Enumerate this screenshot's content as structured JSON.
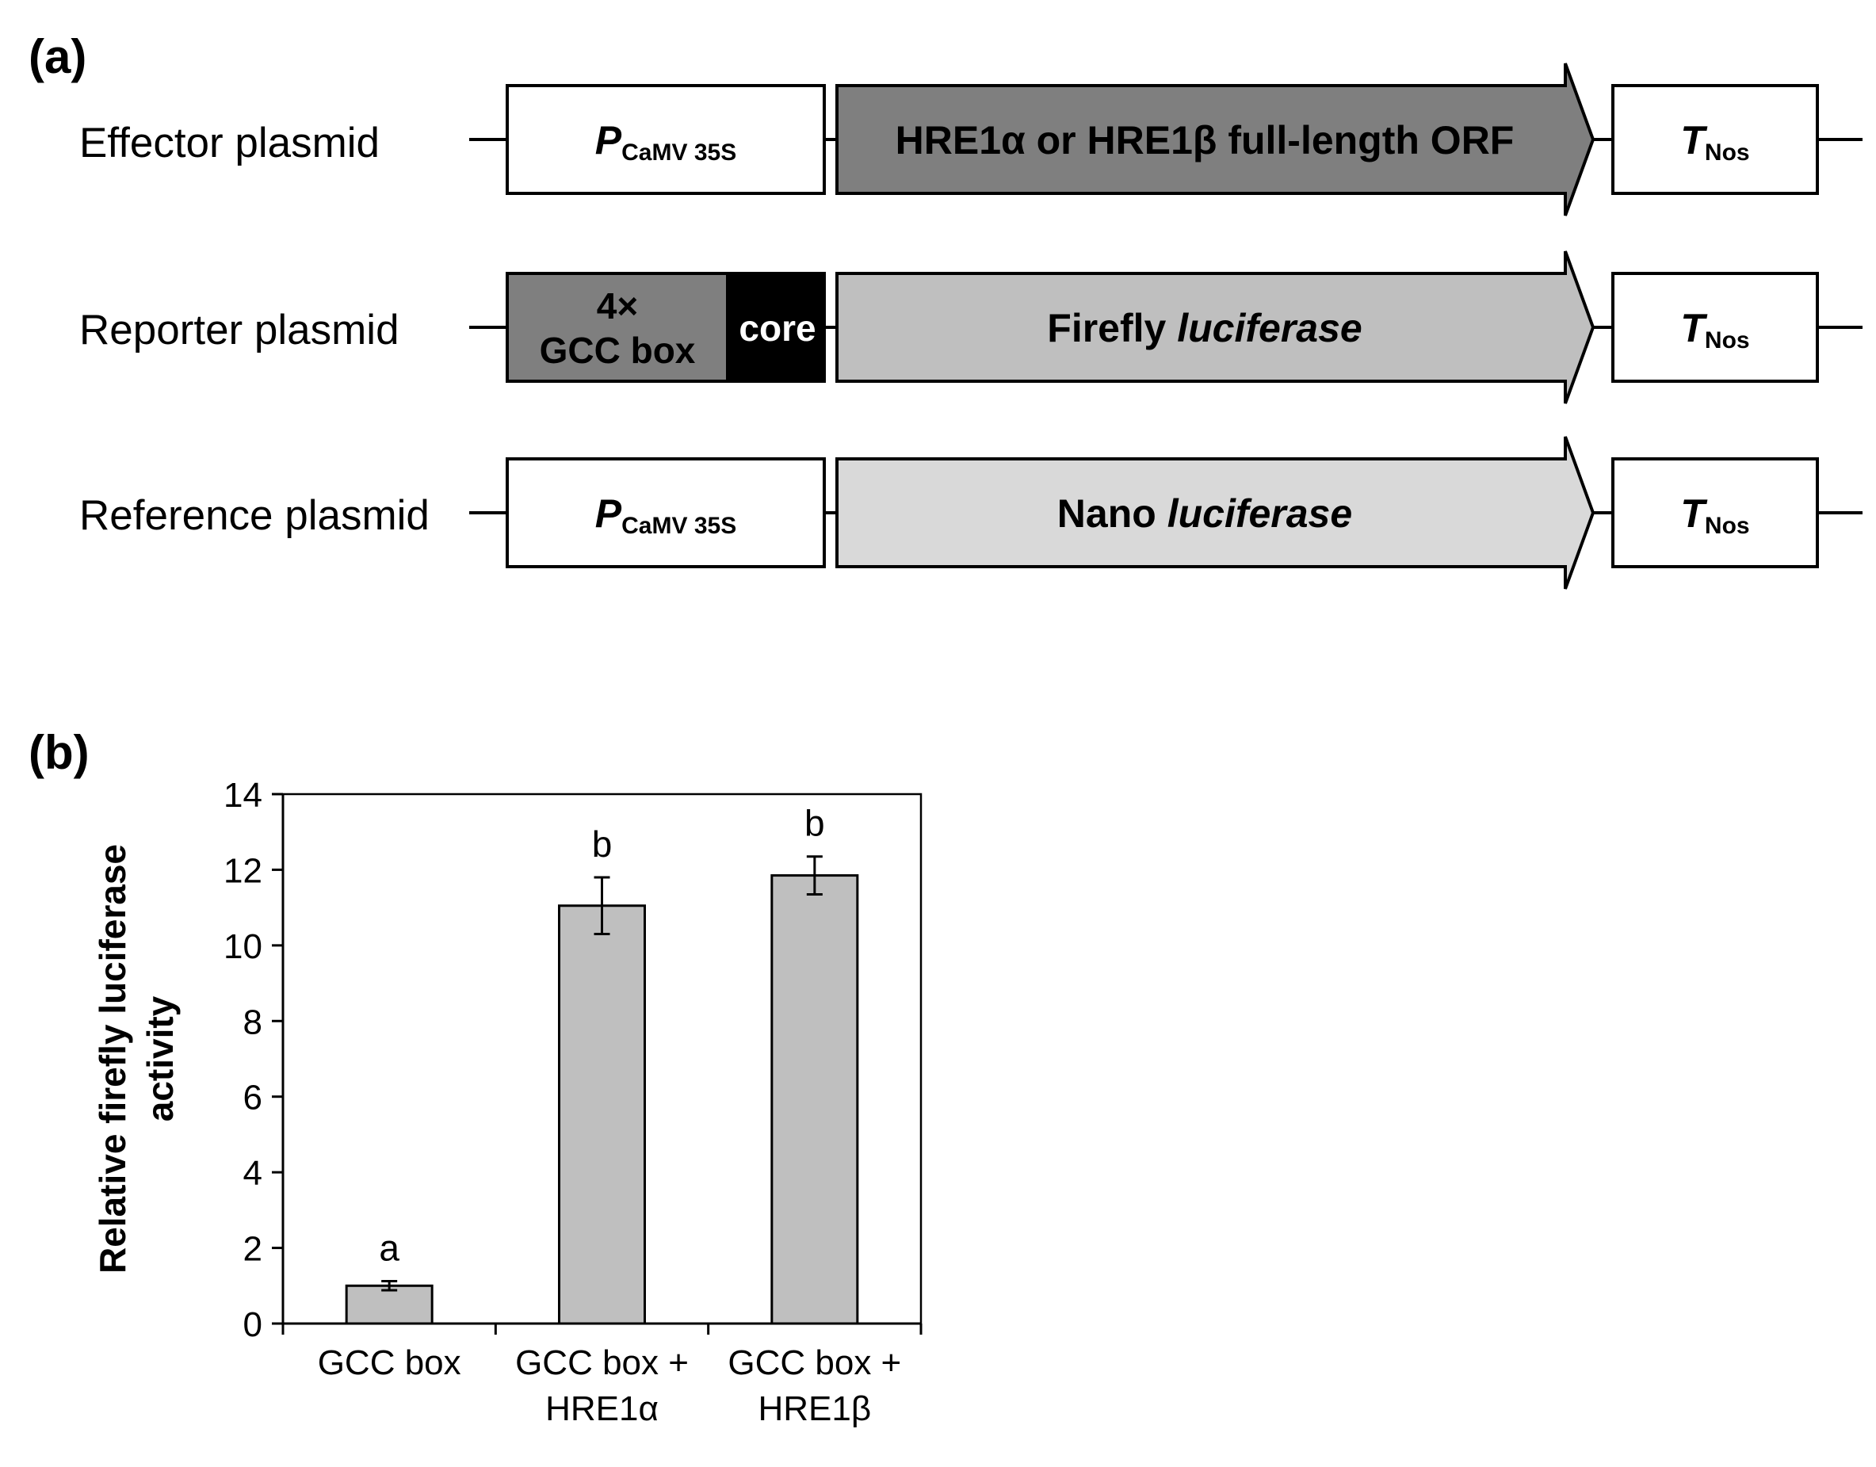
{
  "panel_a": {
    "label": "(a)",
    "rows": [
      {
        "name": "Effector plasmid",
        "promoter": {
          "main": "P",
          "sub": "CaMV 35S"
        },
        "orf": {
          "text": "HRE1α or HRE1β full-length ORF",
          "color": "#7f7f7f"
        },
        "terminator": {
          "main": "T",
          "sub": "Nos"
        }
      },
      {
        "name": "Reporter plasmid",
        "promoter_box": {
          "line1": "4×",
          "line2": "GCC box",
          "color": "#7f7f7f"
        },
        "core": {
          "text": "core",
          "color": "#000000"
        },
        "orf": {
          "text_plain": "Firefly ",
          "text_italic": "luciferase",
          "color": "#bfbfbf"
        },
        "terminator": {
          "main": "T",
          "sub": "Nos"
        }
      },
      {
        "name": "Reference plasmid",
        "promoter": {
          "main": "P",
          "sub": "CaMV 35S"
        },
        "orf": {
          "text_plain": "Nano ",
          "text_italic": "luciferase",
          "color": "#d9d9d9"
        },
        "terminator": {
          "main": "T",
          "sub": "Nos"
        }
      }
    ]
  },
  "panel_b": {
    "label": "(b)",
    "chart_data": {
      "type": "bar",
      "categories": [
        [
          "GCC box"
        ],
        [
          "GCC box +",
          "HRE1α"
        ],
        [
          "GCC box +",
          "HRE1β"
        ]
      ],
      "values": [
        1.0,
        11.05,
        11.85
      ],
      "errors": [
        0.12,
        0.75,
        0.5
      ],
      "letters": [
        "a",
        "b",
        "b"
      ],
      "ylabel_line1": "Relative firefly luciferase",
      "ylabel_line2": "activity",
      "ylim": [
        0,
        14
      ],
      "yticks": [
        0,
        2,
        4,
        6,
        8,
        10,
        12,
        14
      ],
      "bar_color": "#bfbfbf",
      "grid": false
    }
  }
}
